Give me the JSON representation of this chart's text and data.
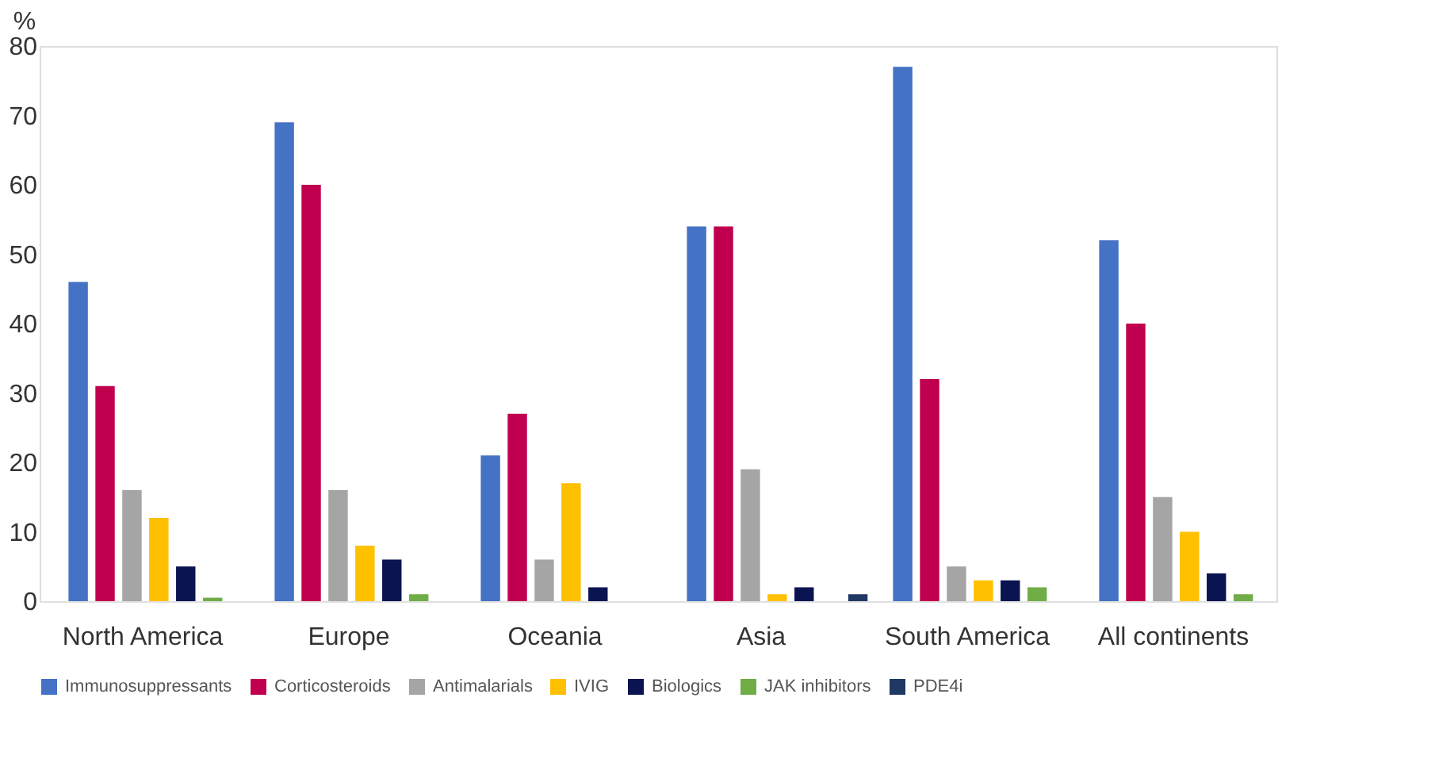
{
  "chart_data": {
    "type": "bar",
    "ylabel": "%",
    "categories": [
      "North America",
      "Europe",
      "Oceania",
      "Asia",
      "South America",
      "All continents"
    ],
    "series": [
      {
        "name": "Immunosuppressants",
        "color": "#4472c4",
        "values": [
          46,
          69,
          21,
          54,
          77,
          52
        ]
      },
      {
        "name": "Corticosteroids",
        "color": "#c0004e",
        "values": [
          31,
          60,
          27,
          54,
          32,
          40
        ]
      },
      {
        "name": "Antimalarials",
        "color": "#a5a5a5",
        "values": [
          16,
          16,
          6,
          19,
          5,
          15
        ]
      },
      {
        "name": "IVIG",
        "color": "#ffc000",
        "values": [
          12,
          8,
          17,
          1,
          3,
          10
        ]
      },
      {
        "name": "Biologics",
        "color": "#0a1450",
        "values": [
          5,
          6,
          2,
          2,
          3,
          4
        ]
      },
      {
        "name": "JAK inhibitors",
        "color": "#70ad47",
        "values": [
          0.5,
          1,
          0,
          0,
          2,
          1
        ]
      },
      {
        "name": "PDE4i",
        "color": "#203864",
        "values": [
          0,
          0,
          0,
          1,
          0,
          0
        ]
      }
    ],
    "ylim": [
      0,
      80
    ],
    "yticks": [
      0,
      10,
      20,
      30,
      40,
      50,
      60,
      70,
      80
    ],
    "grid": false,
    "legend": "bottom"
  }
}
